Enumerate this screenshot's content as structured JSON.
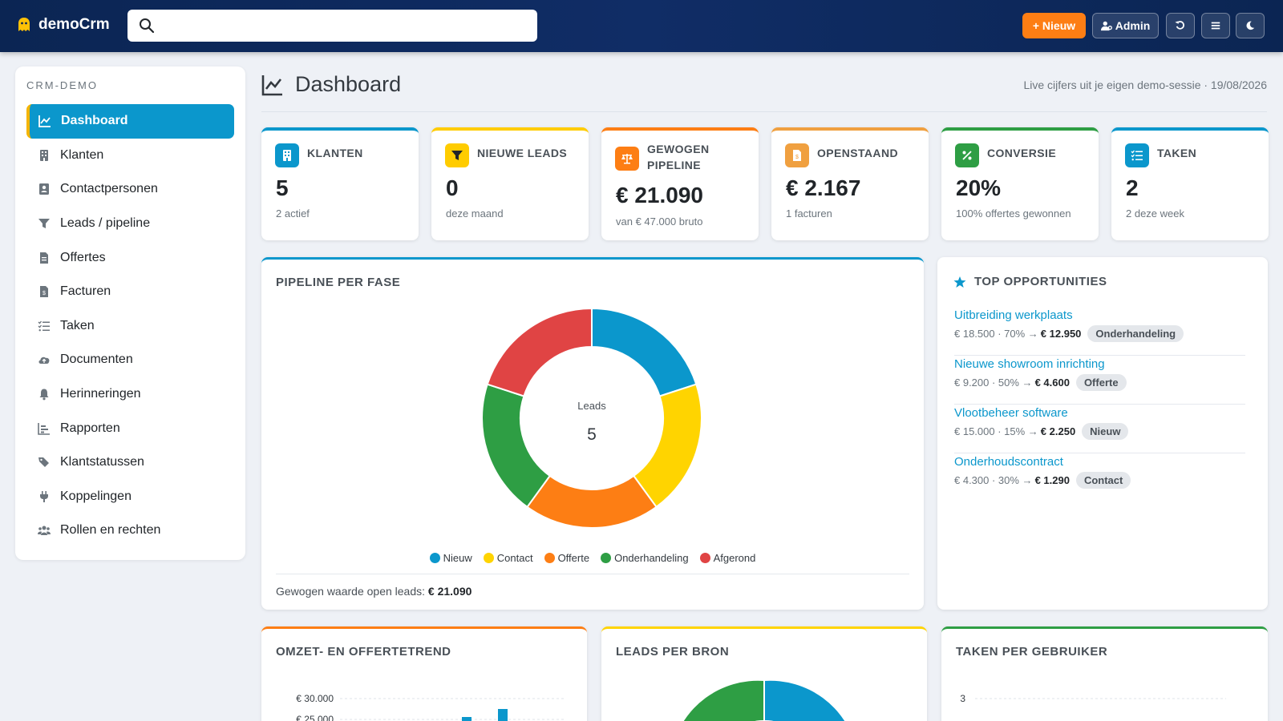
{
  "app": {
    "name": "demoCrm"
  },
  "search": {
    "placeholder": "",
    "value": ""
  },
  "topbar": {
    "new_label": "+ Nieuw",
    "admin_label": "Admin"
  },
  "sidebar": {
    "heading": "CRM-DEMO",
    "items": [
      {
        "label": "Dashboard",
        "icon": "chart-line-icon",
        "active": true
      },
      {
        "label": "Klanten",
        "icon": "building-icon"
      },
      {
        "label": "Contactpersonen",
        "icon": "contact-card-icon"
      },
      {
        "label": "Leads / pipeline",
        "icon": "funnel-icon"
      },
      {
        "label": "Offertes",
        "icon": "document-icon"
      },
      {
        "label": "Facturen",
        "icon": "invoice-icon"
      },
      {
        "label": "Taken",
        "icon": "task-list-icon"
      },
      {
        "label": "Documenten",
        "icon": "cloud-upload-icon"
      },
      {
        "label": "Herinneringen",
        "icon": "bell-icon"
      },
      {
        "label": "Rapporten",
        "icon": "bar-chart-icon"
      },
      {
        "label": "Klantstatussen",
        "icon": "tags-icon"
      },
      {
        "label": "Koppelingen",
        "icon": "plug-icon"
      },
      {
        "label": "Rollen en rechten",
        "icon": "users-icon"
      }
    ]
  },
  "header": {
    "title": "Dashboard",
    "subtitle": "Live cijfers uit je eigen demo-sessie · 19/08/2026"
  },
  "kpis": [
    {
      "label": "KLANTEN",
      "value": "5",
      "sub": "2 actief",
      "color": "#0b97cc",
      "icon": "building-icon"
    },
    {
      "label": "NIEUWE LEADS",
      "value": "0",
      "sub": "deze maand",
      "color": "#ffcc00",
      "icon": "funnel-icon"
    },
    {
      "label": "GEWOGEN PIPELINE",
      "value": "€ 21.090",
      "sub": "van € 47.000 bruto",
      "color": "#fd7e14",
      "icon": "scale-icon"
    },
    {
      "label": "OPENSTAAND",
      "value": "€ 2.167",
      "sub": "1 facturen",
      "color": "#f0a040",
      "icon": "invoice-icon"
    },
    {
      "label": "CONVERSIE",
      "value": "20%",
      "sub": "100% offertes gewonnen",
      "color": "#2e9e44",
      "icon": "percent-icon"
    },
    {
      "label": "TAKEN",
      "value": "2",
      "sub": "2 deze week",
      "color": "#0b97cc",
      "icon": "task-list-icon"
    }
  ],
  "pipeline": {
    "title": "PIPELINE PER FASE",
    "center_label": "Leads",
    "center_value": "5",
    "footer_label": "Gewogen waarde open leads:",
    "footer_value": "€ 21.090"
  },
  "top_opps": {
    "title": "TOP OPPORTUNITIES",
    "items": [
      {
        "name": "Uitbreiding werkplaats",
        "detail": "€ 18.500 · 70% →",
        "weighted": "€ 12.950",
        "stage": "Onderhandeling"
      },
      {
        "name": "Nieuwe showroom inrichting",
        "detail": "€ 9.200 · 50% →",
        "weighted": "€ 4.600",
        "stage": "Offerte"
      },
      {
        "name": "Vlootbeheer software",
        "detail": "€ 15.000 · 15% →",
        "weighted": "€ 2.250",
        "stage": "Nieuw"
      },
      {
        "name": "Onderhoudscontract",
        "detail": "€ 4.300 · 30% →",
        "weighted": "€ 1.290",
        "stage": "Contact"
      }
    ]
  },
  "bottom_panels": {
    "revenue_title": "OMZET- EN OFFERTETREND",
    "sources_title": "LEADS PER BRON",
    "tasks_title": "TAKEN PER GEBRUIKER"
  },
  "chart_data": [
    {
      "type": "pie",
      "title": "PIPELINE PER FASE",
      "categories": [
        "Nieuw",
        "Contact",
        "Offerte",
        "Onderhandeling",
        "Afgerond"
      ],
      "values": [
        1,
        1,
        1,
        1,
        1
      ],
      "colors": [
        "#0b97cc",
        "#ffd400",
        "#fd7e14",
        "#2e9e44",
        "#e04444"
      ],
      "legend": "bottom"
    },
    {
      "type": "bar",
      "title": "OMZET- EN OFFERTETREND",
      "y_ticks": [
        "€ 30.000",
        "€ 25.000"
      ],
      "ylim": [
        0,
        30000
      ],
      "grid": true,
      "partial": true
    },
    {
      "type": "pie",
      "title": "LEADS PER BRON",
      "colors": [
        "#0b97cc",
        "#2e9e44"
      ],
      "partial": true
    },
    {
      "type": "bar",
      "title": "TAKEN PER GEBRUIKER",
      "y_ticks": [
        "3"
      ],
      "grid": true,
      "partial": true
    }
  ]
}
